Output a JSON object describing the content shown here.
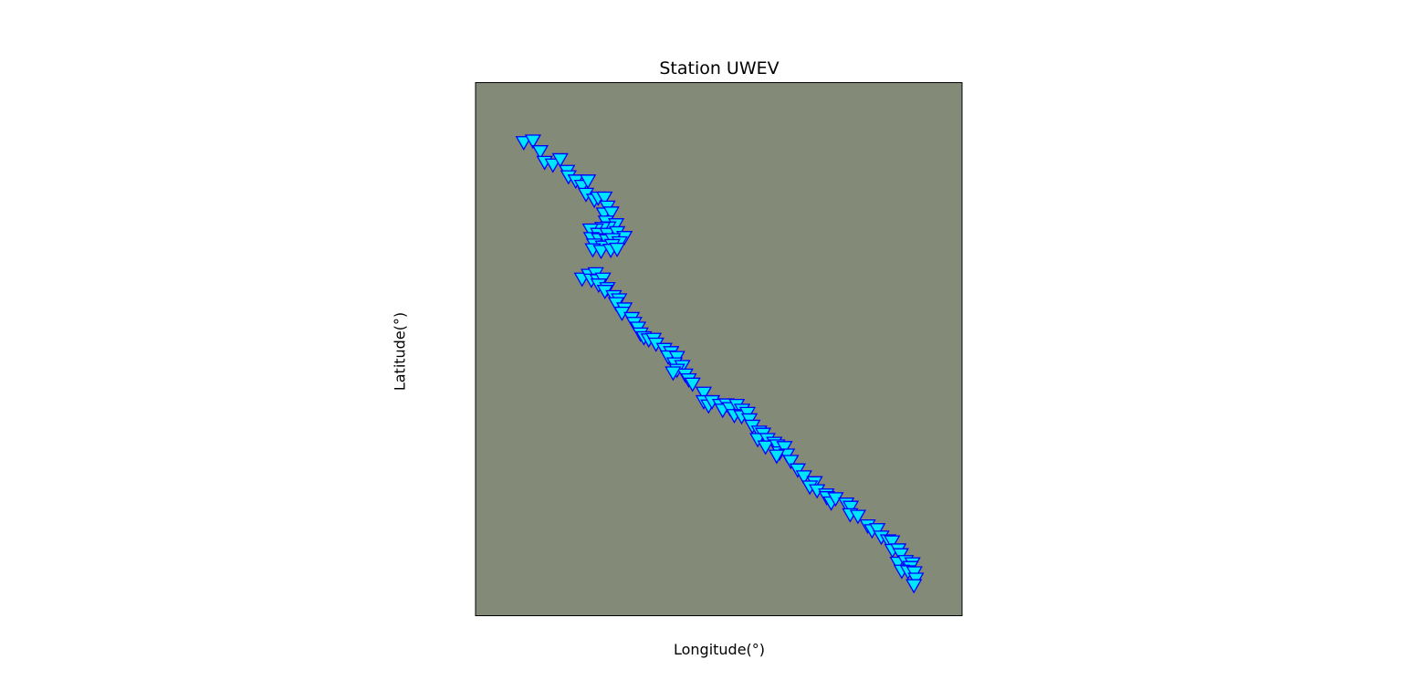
{
  "chart_data": {
    "type": "scatter",
    "title": "Station UWEV",
    "xlabel": "Longitude(°)",
    "ylabel": "Latitude(°)",
    "xlim": [
      0,
      1
    ],
    "ylim": [
      0,
      1
    ],
    "grid": false,
    "axis_ticks": false,
    "background_color": "#848a78",
    "marker": "triangle-down",
    "marker_face_color": "#00e5ff",
    "marker_edge_color": "#0000ff",
    "points": [
      {
        "x": 0.099,
        "y": 0.89
      },
      {
        "x": 0.118,
        "y": 0.893
      },
      {
        "x": 0.133,
        "y": 0.873
      },
      {
        "x": 0.142,
        "y": 0.853
      },
      {
        "x": 0.159,
        "y": 0.848
      },
      {
        "x": 0.174,
        "y": 0.858
      },
      {
        "x": 0.188,
        "y": 0.836
      },
      {
        "x": 0.191,
        "y": 0.826
      },
      {
        "x": 0.206,
        "y": 0.818
      },
      {
        "x": 0.219,
        "y": 0.808
      },
      {
        "x": 0.231,
        "y": 0.818
      },
      {
        "x": 0.227,
        "y": 0.793
      },
      {
        "x": 0.244,
        "y": 0.782
      },
      {
        "x": 0.252,
        "y": 0.786
      },
      {
        "x": 0.265,
        "y": 0.786
      },
      {
        "x": 0.271,
        "y": 0.769
      },
      {
        "x": 0.264,
        "y": 0.756
      },
      {
        "x": 0.279,
        "y": 0.758
      },
      {
        "x": 0.268,
        "y": 0.741
      },
      {
        "x": 0.289,
        "y": 0.736
      },
      {
        "x": 0.273,
        "y": 0.73
      },
      {
        "x": 0.261,
        "y": 0.729
      },
      {
        "x": 0.247,
        "y": 0.726
      },
      {
        "x": 0.236,
        "y": 0.726
      },
      {
        "x": 0.252,
        "y": 0.718
      },
      {
        "x": 0.271,
        "y": 0.718
      },
      {
        "x": 0.291,
        "y": 0.721
      },
      {
        "x": 0.306,
        "y": 0.712
      },
      {
        "x": 0.238,
        "y": 0.71
      },
      {
        "x": 0.254,
        "y": 0.708
      },
      {
        "x": 0.27,
        "y": 0.706
      },
      {
        "x": 0.282,
        "y": 0.708
      },
      {
        "x": 0.296,
        "y": 0.702
      },
      {
        "x": 0.244,
        "y": 0.698
      },
      {
        "x": 0.262,
        "y": 0.694
      },
      {
        "x": 0.281,
        "y": 0.697
      },
      {
        "x": 0.241,
        "y": 0.689
      },
      {
        "x": 0.258,
        "y": 0.686
      },
      {
        "x": 0.278,
        "y": 0.688
      },
      {
        "x": 0.291,
        "y": 0.69
      },
      {
        "x": 0.219,
        "y": 0.634
      },
      {
        "x": 0.233,
        "y": 0.641
      },
      {
        "x": 0.247,
        "y": 0.644
      },
      {
        "x": 0.238,
        "y": 0.632
      },
      {
        "x": 0.251,
        "y": 0.631
      },
      {
        "x": 0.262,
        "y": 0.634
      },
      {
        "x": 0.253,
        "y": 0.623
      },
      {
        "x": 0.271,
        "y": 0.616
      },
      {
        "x": 0.266,
        "y": 0.611
      },
      {
        "x": 0.284,
        "y": 0.601
      },
      {
        "x": 0.295,
        "y": 0.595
      },
      {
        "x": 0.289,
        "y": 0.588
      },
      {
        "x": 0.306,
        "y": 0.578
      },
      {
        "x": 0.301,
        "y": 0.57
      },
      {
        "x": 0.321,
        "y": 0.56
      },
      {
        "x": 0.326,
        "y": 0.551
      },
      {
        "x": 0.334,
        "y": 0.542
      },
      {
        "x": 0.339,
        "y": 0.531
      },
      {
        "x": 0.346,
        "y": 0.524
      },
      {
        "x": 0.356,
        "y": 0.52
      },
      {
        "x": 0.366,
        "y": 0.521
      },
      {
        "x": 0.371,
        "y": 0.512
      },
      {
        "x": 0.388,
        "y": 0.502
      },
      {
        "x": 0.402,
        "y": 0.496
      },
      {
        "x": 0.396,
        "y": 0.488
      },
      {
        "x": 0.414,
        "y": 0.487
      },
      {
        "x": 0.409,
        "y": 0.475
      },
      {
        "x": 0.425,
        "y": 0.47
      },
      {
        "x": 0.414,
        "y": 0.463
      },
      {
        "x": 0.431,
        "y": 0.454
      },
      {
        "x": 0.406,
        "y": 0.458
      },
      {
        "x": 0.438,
        "y": 0.445
      },
      {
        "x": 0.446,
        "y": 0.437
      },
      {
        "x": 0.469,
        "y": 0.42
      },
      {
        "x": 0.469,
        "y": 0.404
      },
      {
        "x": 0.479,
        "y": 0.396
      },
      {
        "x": 0.486,
        "y": 0.404
      },
      {
        "x": 0.503,
        "y": 0.397
      },
      {
        "x": 0.516,
        "y": 0.398
      },
      {
        "x": 0.508,
        "y": 0.388
      },
      {
        "x": 0.523,
        "y": 0.391
      },
      {
        "x": 0.537,
        "y": 0.397
      },
      {
        "x": 0.548,
        "y": 0.388
      },
      {
        "x": 0.532,
        "y": 0.378
      },
      {
        "x": 0.547,
        "y": 0.376
      },
      {
        "x": 0.559,
        "y": 0.382
      },
      {
        "x": 0.563,
        "y": 0.37
      },
      {
        "x": 0.569,
        "y": 0.358
      },
      {
        "x": 0.583,
        "y": 0.347
      },
      {
        "x": 0.591,
        "y": 0.343
      },
      {
        "x": 0.58,
        "y": 0.333
      },
      {
        "x": 0.6,
        "y": 0.333
      },
      {
        "x": 0.614,
        "y": 0.326
      },
      {
        "x": 0.596,
        "y": 0.319
      },
      {
        "x": 0.62,
        "y": 0.321
      },
      {
        "x": 0.625,
        "y": 0.308
      },
      {
        "x": 0.635,
        "y": 0.318
      },
      {
        "x": 0.64,
        "y": 0.304
      },
      {
        "x": 0.619,
        "y": 0.302
      },
      {
        "x": 0.648,
        "y": 0.292
      },
      {
        "x": 0.662,
        "y": 0.276
      },
      {
        "x": 0.675,
        "y": 0.263
      },
      {
        "x": 0.697,
        "y": 0.252
      },
      {
        "x": 0.687,
        "y": 0.244
      },
      {
        "x": 0.702,
        "y": 0.237
      },
      {
        "x": 0.721,
        "y": 0.229
      },
      {
        "x": 0.722,
        "y": 0.224
      },
      {
        "x": 0.731,
        "y": 0.214
      },
      {
        "x": 0.74,
        "y": 0.222
      },
      {
        "x": 0.762,
        "y": 0.212
      },
      {
        "x": 0.771,
        "y": 0.206
      },
      {
        "x": 0.77,
        "y": 0.192
      },
      {
        "x": 0.786,
        "y": 0.189
      },
      {
        "x": 0.806,
        "y": 0.171
      },
      {
        "x": 0.815,
        "y": 0.162
      },
      {
        "x": 0.826,
        "y": 0.164
      },
      {
        "x": 0.834,
        "y": 0.15
      },
      {
        "x": 0.848,
        "y": 0.143
      },
      {
        "x": 0.856,
        "y": 0.141
      },
      {
        "x": 0.857,
        "y": 0.125
      },
      {
        "x": 0.869,
        "y": 0.126
      },
      {
        "x": 0.874,
        "y": 0.117
      },
      {
        "x": 0.868,
        "y": 0.101
      },
      {
        "x": 0.884,
        "y": 0.104
      },
      {
        "x": 0.898,
        "y": 0.1
      },
      {
        "x": 0.894,
        "y": 0.093
      },
      {
        "x": 0.876,
        "y": 0.086
      },
      {
        "x": 0.889,
        "y": 0.085
      },
      {
        "x": 0.902,
        "y": 0.083
      },
      {
        "x": 0.905,
        "y": 0.071
      },
      {
        "x": 0.901,
        "y": 0.059
      }
    ]
  }
}
